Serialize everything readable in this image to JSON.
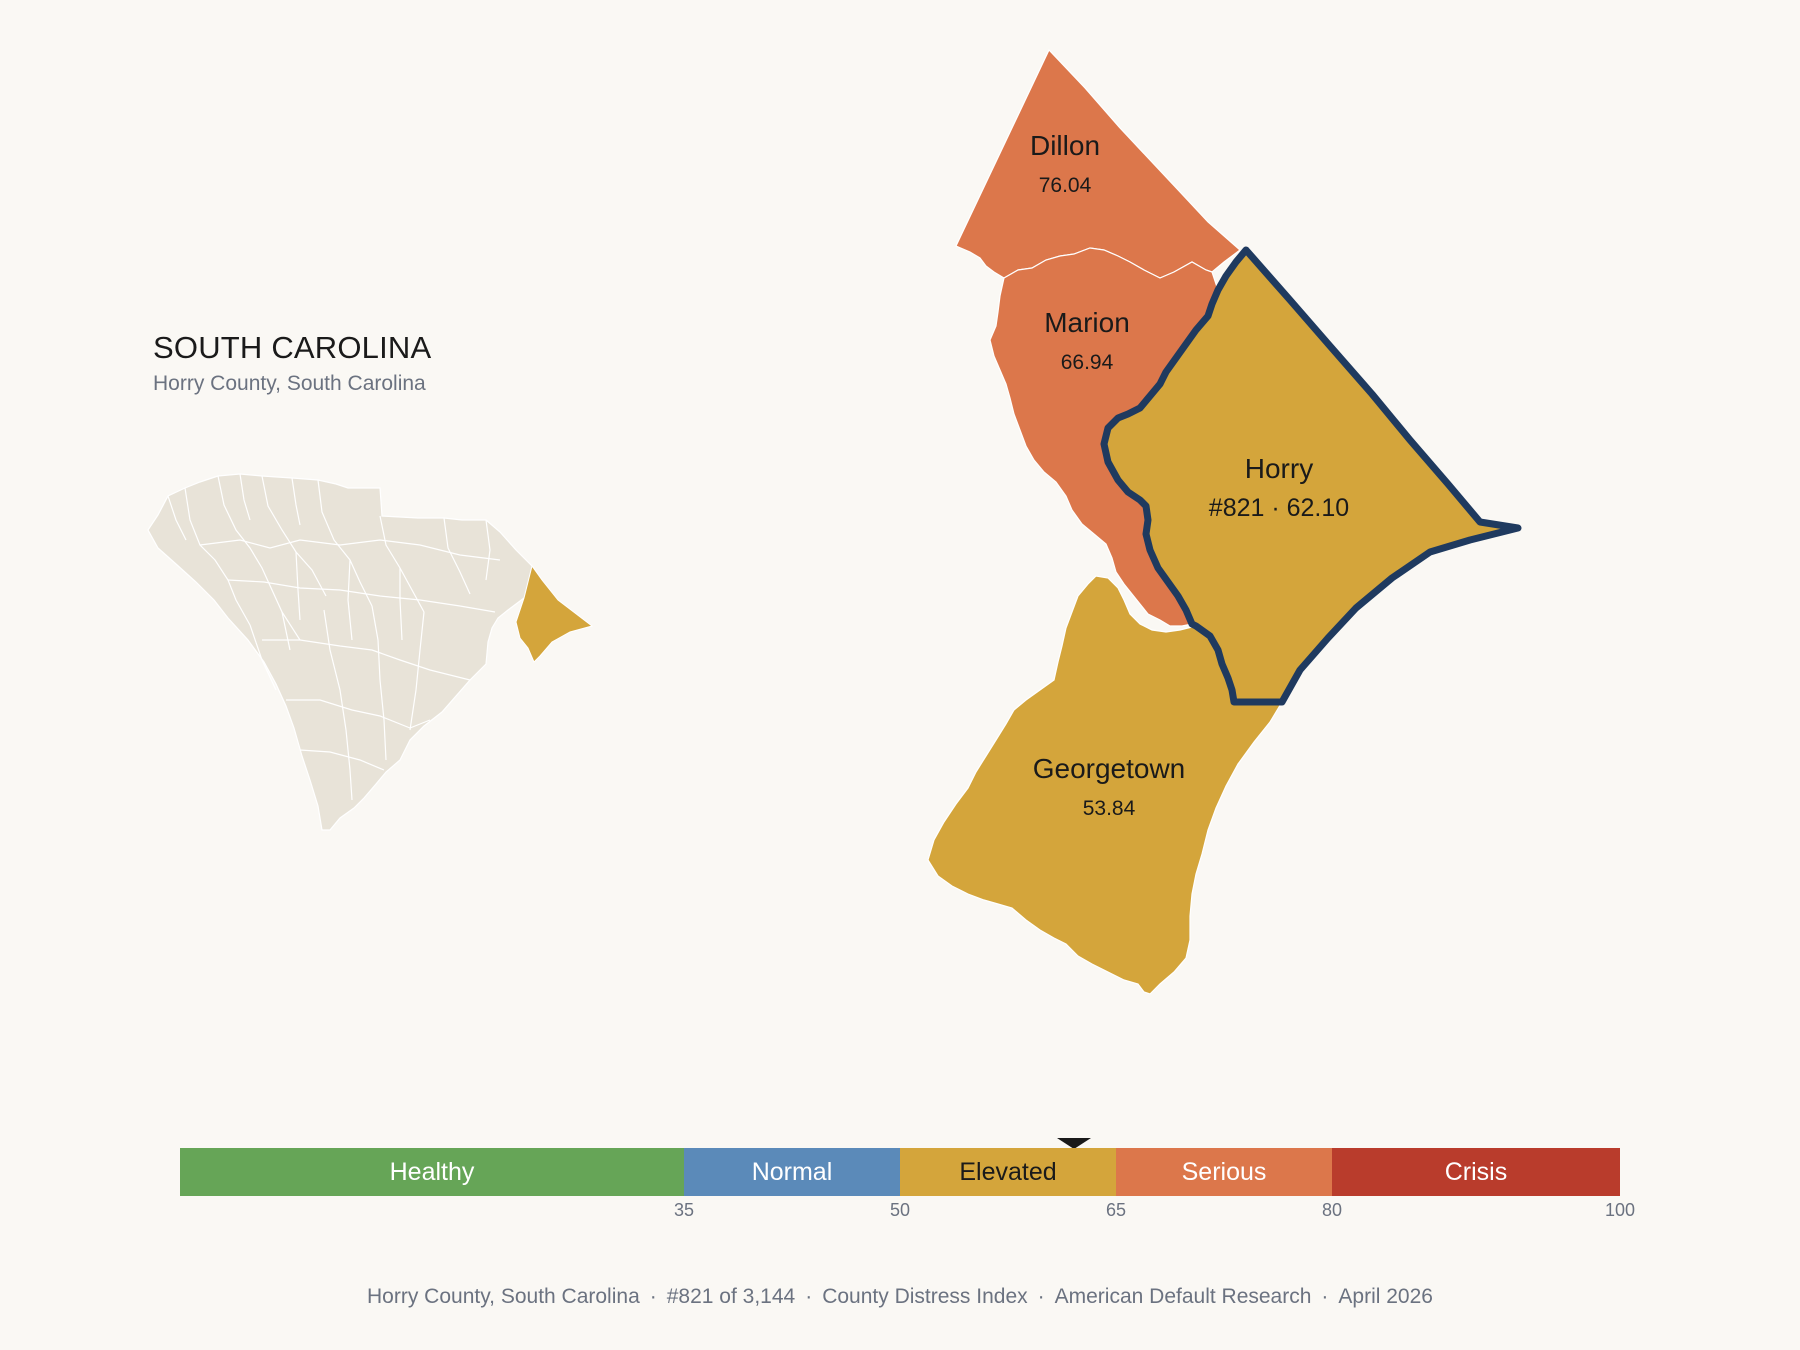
{
  "header": {
    "state_title": "SOUTH CAROLINA",
    "subtitle": "Horry County, South Carolina"
  },
  "colors": {
    "background": "#faf8f4",
    "state_fill": "#e8e3d8",
    "elevated": "#d4a53b",
    "serious": "#dc774b",
    "highlight_outline": "#1f3a5f"
  },
  "counties": [
    {
      "name": "Dillon",
      "score": "76.04",
      "category": "Serious"
    },
    {
      "name": "Marion",
      "score": "66.94",
      "category": "Serious"
    },
    {
      "name": "Horry",
      "score": "#821 · 62.10",
      "category": "Elevated",
      "selected": true
    },
    {
      "name": "Georgetown",
      "score": "53.84",
      "category": "Elevated"
    }
  ],
  "selected_value": 62.1,
  "legend": {
    "scale_max": 100,
    "segments": [
      {
        "label": "Healthy",
        "from": 0,
        "to": 35,
        "color": "#66a557",
        "text_color": "#ffffff"
      },
      {
        "label": "Normal",
        "from": 35,
        "to": 50,
        "color": "#5b8ab9",
        "text_color": "#ffffff"
      },
      {
        "label": "Elevated",
        "from": 50,
        "to": 65,
        "color": "#d4a53b",
        "text_color": "#1a1a1a"
      },
      {
        "label": "Serious",
        "from": 65,
        "to": 80,
        "color": "#dc774b",
        "text_color": "#ffffff"
      },
      {
        "label": "Crisis",
        "from": 80,
        "to": 100,
        "color": "#b93c2c",
        "text_color": "#ffffff"
      }
    ],
    "ticks": [
      "35",
      "50",
      "65",
      "80",
      "100"
    ]
  },
  "footer": {
    "items": [
      "Horry County, South Carolina",
      "#821 of 3,144",
      "County Distress Index",
      "American Default Research",
      "April 2026"
    ],
    "separator": "·"
  }
}
